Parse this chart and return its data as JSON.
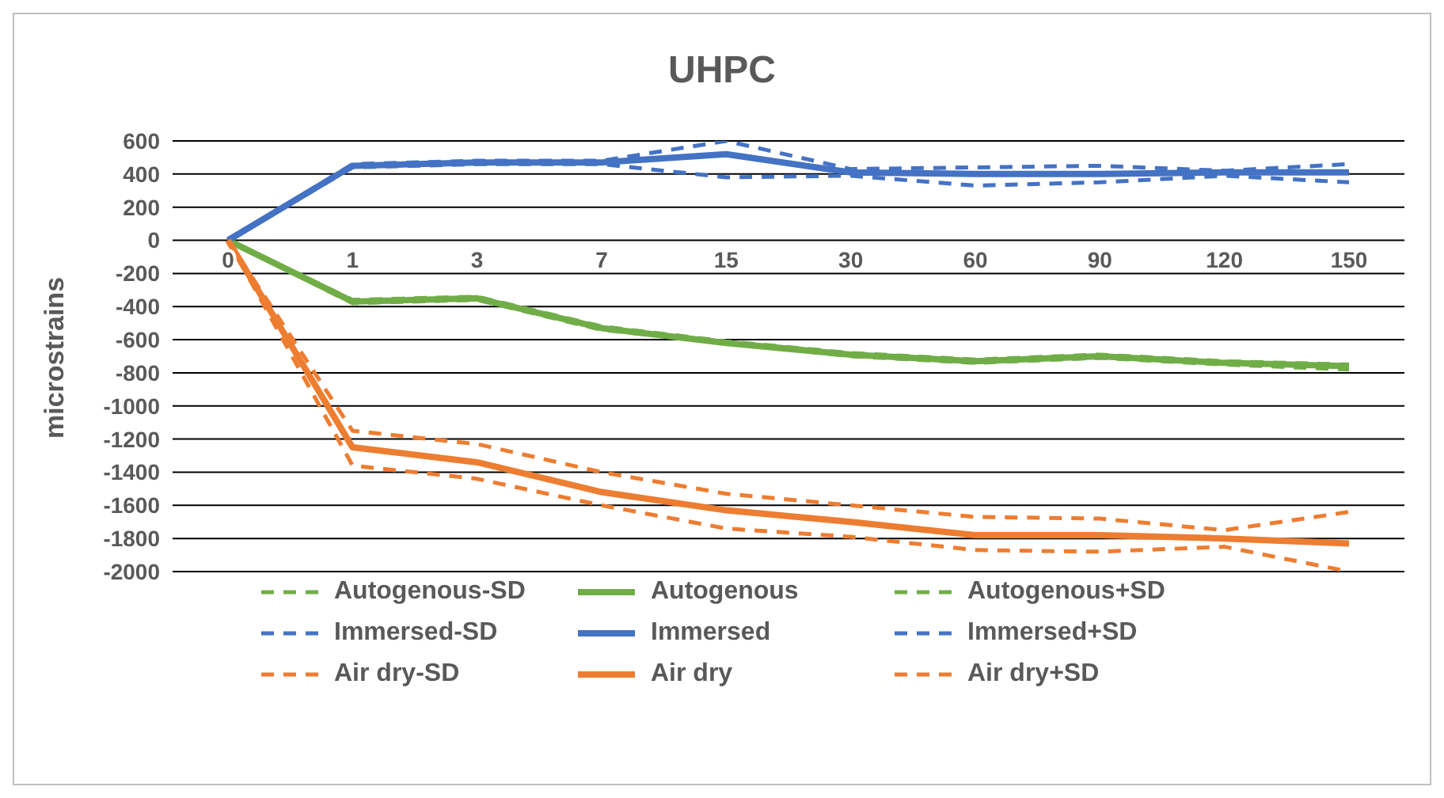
{
  "chart_data": {
    "type": "line",
    "title": "UHPC",
    "ylabel": "microstrains",
    "categories": [
      "0",
      "1",
      "3",
      "7",
      "15",
      "30",
      "60",
      "90",
      "120",
      "150"
    ],
    "series": [
      {
        "name": "Autogenous-SD",
        "color": "#70ad47",
        "line_style": "dashed",
        "values": [
          0,
          -380,
          -360,
          -540,
          -620,
          -700,
          -740,
          -710,
          -750,
          -780
        ]
      },
      {
        "name": "Autogenous",
        "color": "#70ad47",
        "line_style": "solid",
        "values": [
          0,
          -370,
          -350,
          -530,
          -620,
          -690,
          -730,
          -700,
          -740,
          -760
        ]
      },
      {
        "name": "Autogenous+SD",
        "color": "#70ad47",
        "line_style": "dashed",
        "values": [
          0,
          -360,
          -340,
          -520,
          -610,
          -680,
          -720,
          -690,
          -730,
          -750
        ]
      },
      {
        "name": "Immersed-SD",
        "color": "#4472c4",
        "line_style": "dashed",
        "values": [
          0,
          440,
          460,
          460,
          380,
          390,
          330,
          350,
          390,
          350
        ]
      },
      {
        "name": "Immersed",
        "color": "#4472c4",
        "line_style": "solid",
        "values": [
          0,
          450,
          470,
          470,
          520,
          410,
          400,
          400,
          410,
          410
        ]
      },
      {
        "name": "Immersed+SD",
        "color": "#4472c4",
        "line_style": "dashed",
        "values": [
          0,
          460,
          480,
          480,
          600,
          430,
          440,
          450,
          420,
          460
        ]
      },
      {
        "name": "Air dry-SD",
        "color": "#ed7d31",
        "line_style": "dashed",
        "values": [
          0,
          -1360,
          -1440,
          -1600,
          -1740,
          -1790,
          -1870,
          -1880,
          -1850,
          -2000
        ]
      },
      {
        "name": "Air dry",
        "color": "#ed7d31",
        "line_style": "solid",
        "values": [
          0,
          -1250,
          -1340,
          -1520,
          -1630,
          -1700,
          -1780,
          -1780,
          -1800,
          -1830
        ]
      },
      {
        "name": "Air dry+SD",
        "color": "#ed7d31",
        "line_style": "dashed",
        "values": [
          0,
          -1150,
          -1230,
          -1400,
          -1530,
          -1600,
          -1670,
          -1680,
          -1750,
          -1640
        ]
      }
    ],
    "ylim": [
      -2000,
      600
    ],
    "yticks": [
      -2000,
      -1800,
      -1600,
      -1400,
      -1200,
      -1000,
      -800,
      -600,
      -400,
      -200,
      0,
      200,
      400,
      600
    ],
    "grid": "y",
    "legend": "bottom",
    "marker": "none"
  }
}
